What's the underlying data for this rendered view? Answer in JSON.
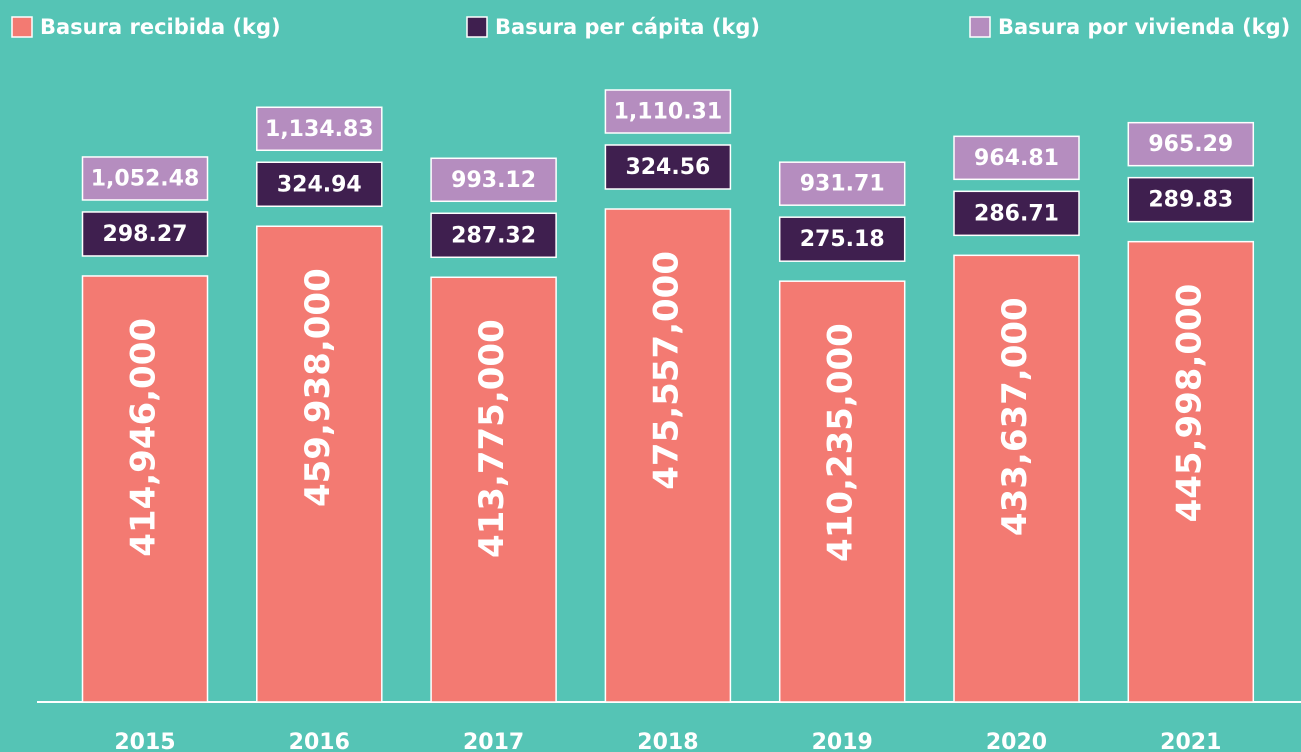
{
  "chart_data": {
    "type": "bar",
    "categories": [
      "2015",
      "2016",
      "2017",
      "2018",
      "2019",
      "2020",
      "2021"
    ],
    "series": [
      {
        "name": "Basura recibida (kg)",
        "color": "#f37a72",
        "values": [
          414946000,
          459938000,
          413775000,
          475557000,
          410235000,
          433637000,
          445998000
        ],
        "value_labels": [
          "414,946,000",
          "459,938,000",
          "413,775,000",
          "475,557,000",
          "410,235,000",
          "433,637,000",
          "445,998,000"
        ]
      },
      {
        "name": "Basura per cápita (kg)",
        "color": "#3f1f4f",
        "values": [
          298.27,
          324.94,
          287.32,
          324.56,
          275.18,
          286.71,
          289.83
        ],
        "value_labels": [
          "298.27",
          "324.94",
          "287.32",
          "324.56",
          "275.18",
          "286.71",
          "289.83"
        ]
      },
      {
        "name": "Basura por vivienda (kg)",
        "color": "#b58dbf",
        "values": [
          1052.48,
          1134.83,
          993.12,
          1110.31,
          931.71,
          964.81,
          965.29
        ],
        "value_labels": [
          "1,052.48",
          "1,134.83",
          "993.12",
          "1,110.31",
          "931.71",
          "964.81",
          "965.29"
        ]
      }
    ],
    "ylim": [
      29400000,
      592300000
    ]
  }
}
